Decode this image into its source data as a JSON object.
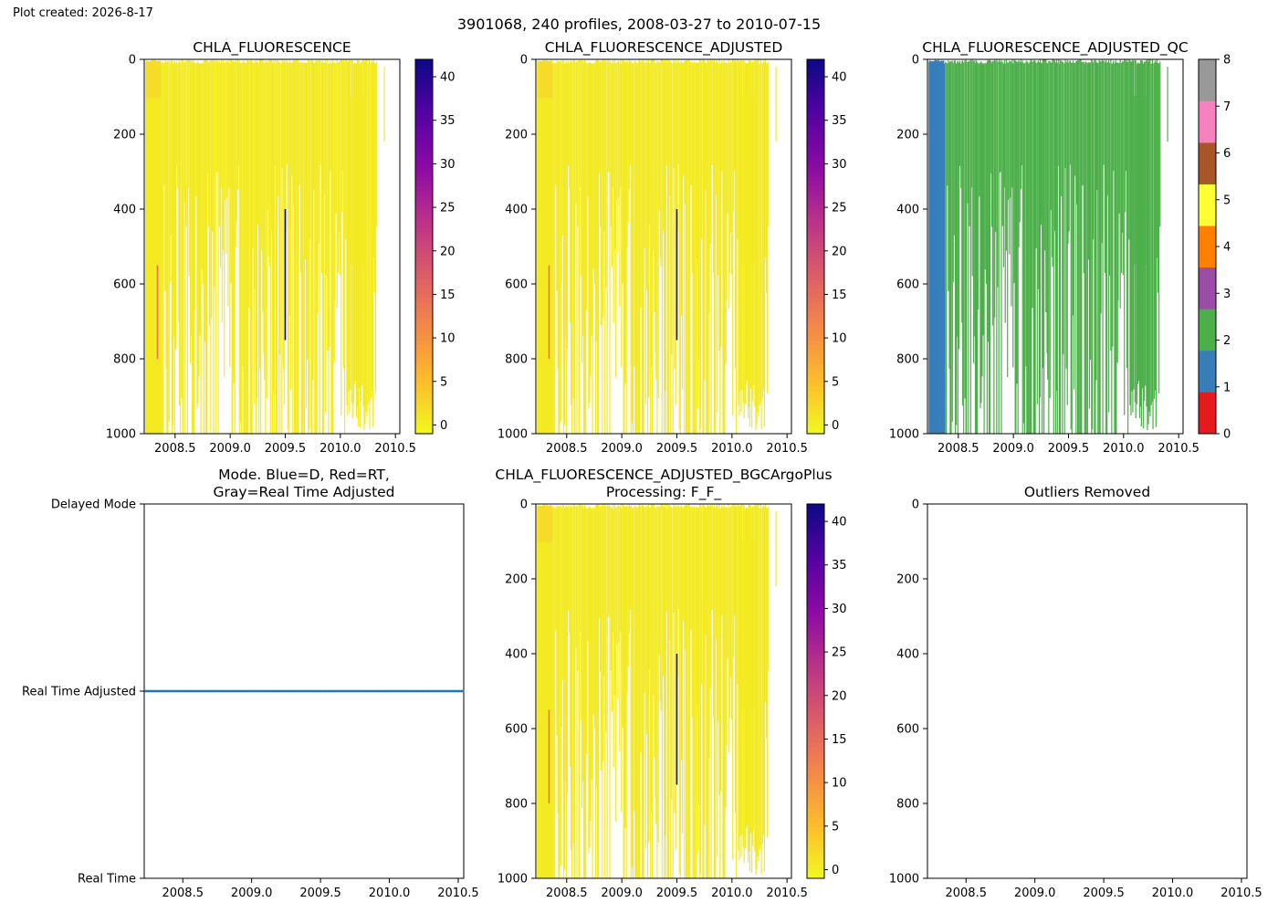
{
  "plot_created": "Plot created: 2026-8-17",
  "suptitle": "3901068, 240 profiles, 2008-03-27 to 2010-07-15",
  "chart_data": [
    {
      "id": "chla",
      "type": "heatmap",
      "title": "CHLA_FLUORESCENCE",
      "xlabel": "",
      "ylabel": "",
      "xlim": [
        2008.22,
        2010.54
      ],
      "ylim": [
        1000,
        0
      ],
      "xticks": [
        "2008.5",
        "2009.0",
        "2009.5",
        "2010.0",
        "2010.5"
      ],
      "yticks": [
        "0",
        "200",
        "400",
        "600",
        "800",
        "1000"
      ],
      "colorbar": {
        "cmap": "plasma_r",
        "range": [
          -1,
          42
        ],
        "ticks": [
          "0",
          "5",
          "10",
          "15",
          "20",
          "25",
          "30",
          "35",
          "40"
        ]
      },
      "dominant_value": 0.5,
      "features": [
        {
          "x": 2009.5,
          "depth_top": 400,
          "depth_bottom": 750,
          "value": 42
        },
        {
          "x": 2008.34,
          "depth_top": 550,
          "depth_bottom": 800,
          "value": 14
        }
      ]
    },
    {
      "id": "chla_adj",
      "type": "heatmap",
      "title": "CHLA_FLUORESCENCE_ADJUSTED",
      "xlabel": "",
      "ylabel": "",
      "xlim": [
        2008.22,
        2010.54
      ],
      "ylim": [
        1000,
        0
      ],
      "xticks": [
        "2008.5",
        "2009.0",
        "2009.5",
        "2010.0",
        "2010.5"
      ],
      "yticks": [
        "0",
        "200",
        "400",
        "600",
        "800",
        "1000"
      ],
      "colorbar": {
        "cmap": "plasma_r",
        "range": [
          -1,
          42
        ],
        "ticks": [
          "0",
          "5",
          "10",
          "15",
          "20",
          "25",
          "30",
          "35",
          "40"
        ]
      },
      "dominant_value": 0.5,
      "features": [
        {
          "x": 2009.5,
          "depth_top": 400,
          "depth_bottom": 750,
          "value": 42
        },
        {
          "x": 2008.34,
          "depth_top": 550,
          "depth_bottom": 800,
          "value": 14
        }
      ]
    },
    {
      "id": "chla_adj_qc",
      "type": "heatmap",
      "title": "CHLA_FLUORESCENCE_ADJUSTED_QC",
      "xlabel": "",
      "ylabel": "",
      "xlim": [
        2008.22,
        2010.54
      ],
      "ylim": [
        1000,
        0
      ],
      "xticks": [
        "2008.5",
        "2009.0",
        "2009.5",
        "2010.0",
        "2010.5"
      ],
      "yticks": [
        "0",
        "200",
        "400",
        "600",
        "800",
        "1000"
      ],
      "colorbar": {
        "cmap": "Set1",
        "range": [
          0,
          8
        ],
        "ticks": [
          "0",
          "1",
          "2",
          "3",
          "4",
          "5",
          "6",
          "7",
          "8"
        ],
        "colors": [
          "#e41a1c",
          "#377eb8",
          "#4daf4a",
          "#984ea3",
          "#ff7f00",
          "#ffff33",
          "#a65628",
          "#f781bf",
          "#999999"
        ]
      },
      "qc_values": {
        "early_profiles": 1,
        "later_profiles": 2
      }
    },
    {
      "id": "mode",
      "type": "scatter",
      "title": "Mode. Blue=D, Red=RT,\nGray=Real Time Adjusted",
      "xlabel": "",
      "ylabel": "",
      "xlim": [
        2008.22,
        2010.54
      ],
      "yticks": [
        "Delayed Mode",
        "Real Time Adjusted",
        "Real Time"
      ],
      "xticks": [
        "2008.5",
        "2009.0",
        "2009.5",
        "2010.0",
        "2010.5"
      ],
      "series": [
        {
          "y": "Real Time Adjusted",
          "x_range": [
            2008.23,
            2010.54
          ],
          "color": "#1f77b4"
        }
      ]
    },
    {
      "id": "chla_bgc",
      "type": "heatmap",
      "title": "CHLA_FLUORESCENCE_ADJUSTED_BGCArgoPlus\nProcessing: F_F_",
      "xlabel": "",
      "ylabel": "",
      "xlim": [
        2008.22,
        2010.54
      ],
      "ylim": [
        1000,
        0
      ],
      "xticks": [
        "2008.5",
        "2009.0",
        "2009.5",
        "2010.0",
        "2010.5"
      ],
      "yticks": [
        "0",
        "200",
        "400",
        "600",
        "800",
        "1000"
      ],
      "colorbar": {
        "cmap": "plasma_r",
        "range": [
          -1,
          42
        ],
        "ticks": [
          "0",
          "5",
          "10",
          "15",
          "20",
          "25",
          "30",
          "35",
          "40"
        ]
      },
      "dominant_value": 0.5,
      "features": [
        {
          "x": 2009.5,
          "depth_top": 400,
          "depth_bottom": 750,
          "value": 42
        },
        {
          "x": 2008.34,
          "depth_top": 550,
          "depth_bottom": 800,
          "value": 14
        }
      ]
    },
    {
      "id": "outliers",
      "type": "scatter",
      "title": "Outliers Removed",
      "xlabel": "",
      "ylabel": "",
      "xlim": [
        2008.22,
        2010.54
      ],
      "ylim": [
        1000,
        0
      ],
      "xticks": [
        "2008.5",
        "2009.0",
        "2009.5",
        "2010.0",
        "2010.5"
      ],
      "yticks": [
        "0",
        "200",
        "400",
        "600",
        "800",
        "1000"
      ],
      "series": []
    }
  ]
}
